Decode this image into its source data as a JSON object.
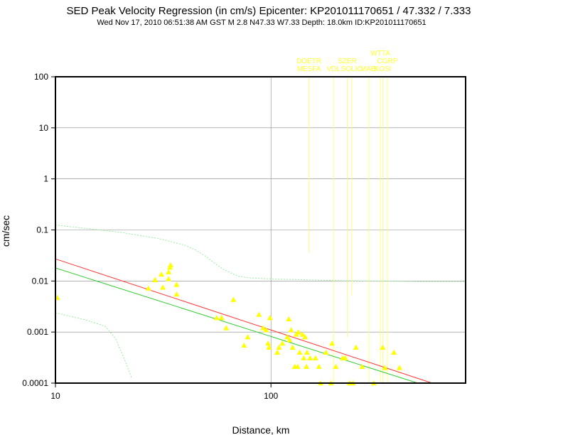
{
  "chart_data": {
    "type": "scatter",
    "title": "SED Peak Velocity Regression (in cm/s) Epicenter: KP201011170651 / 47.332 / 7.333",
    "subtitle": "Wed Nov 17, 2010 06:51:38 AM GST   M 2.8   N47.33 W7.33   Depth: 18.0km   ID:KP201011170651",
    "xlabel": "Distance, km",
    "ylabel": "cm/sec",
    "x_scale": "log",
    "y_scale": "log",
    "xlim": [
      10,
      800
    ],
    "ylim": [
      0.0001,
      100
    ],
    "x_ticks": [
      {
        "v": 10,
        "label": "10"
      },
      {
        "v": 100,
        "label": "100"
      }
    ],
    "y_ticks": [
      {
        "v": 100,
        "label": "100"
      },
      {
        "v": 10,
        "label": "10"
      },
      {
        "v": 1,
        "label": "1"
      },
      {
        "v": 0.1,
        "label": "0.1"
      },
      {
        "v": 0.01,
        "label": "0.01"
      },
      {
        "v": 0.001,
        "label": "0.001"
      },
      {
        "v": 0.0001,
        "label": "0.0001"
      }
    ],
    "grid": "major",
    "colors": {
      "points": "#ffff00",
      "regression": "#ff3333",
      "fit": "#33cc33",
      "bounds": "#99ee99",
      "station_lines": "#ffff66"
    },
    "points": [
      {
        "x": 10.2,
        "y": 0.0047
      },
      {
        "x": 27,
        "y": 0.0072
      },
      {
        "x": 29,
        "y": 0.0105
      },
      {
        "x": 31,
        "y": 0.0135
      },
      {
        "x": 31.5,
        "y": 0.0075
      },
      {
        "x": 33.5,
        "y": 0.011
      },
      {
        "x": 33.5,
        "y": 0.015
      },
      {
        "x": 34,
        "y": 0.0185
      },
      {
        "x": 34.2,
        "y": 0.0205
      },
      {
        "x": 36.5,
        "y": 0.0085
      },
      {
        "x": 36.5,
        "y": 0.0055
      },
      {
        "x": 56,
        "y": 0.0019
      },
      {
        "x": 59,
        "y": 0.0019
      },
      {
        "x": 62,
        "y": 0.0012
      },
      {
        "x": 67,
        "y": 0.0043
      },
      {
        "x": 75,
        "y": 0.00055
      },
      {
        "x": 78,
        "y": 0.0008
      },
      {
        "x": 88,
        "y": 0.0022
      },
      {
        "x": 92,
        "y": 0.0012
      },
      {
        "x": 95,
        "y": 0.0011
      },
      {
        "x": 97,
        "y": 0.0006
      },
      {
        "x": 98,
        "y": 0.0005
      },
      {
        "x": 99,
        "y": 0.0019
      },
      {
        "x": 107,
        "y": 0.0004
      },
      {
        "x": 109,
        "y": 0.0005
      },
      {
        "x": 113,
        "y": 0.0006
      },
      {
        "x": 119,
        "y": 0.0008
      },
      {
        "x": 121,
        "y": 0.0018
      },
      {
        "x": 122,
        "y": 0.0007
      },
      {
        "x": 124,
        "y": 0.0011
      },
      {
        "x": 126,
        "y": 0.0005
      },
      {
        "x": 129,
        "y": 0.00021
      },
      {
        "x": 131,
        "y": 0.0009
      },
      {
        "x": 133,
        "y": 0.00021
      },
      {
        "x": 134,
        "y": 0.001
      },
      {
        "x": 136,
        "y": 0.0004
      },
      {
        "x": 140,
        "y": 0.0009
      },
      {
        "x": 142,
        "y": 0.00031
      },
      {
        "x": 144,
        "y": 0.0008
      },
      {
        "x": 146,
        "y": 0.00021
      },
      {
        "x": 147,
        "y": 0.0004
      },
      {
        "x": 152,
        "y": 0.00031
      },
      {
        "x": 161,
        "y": 0.00031
      },
      {
        "x": 167,
        "y": 0.00021
      },
      {
        "x": 170,
        "y": 0.0001
      },
      {
        "x": 180,
        "y": 0.0004
      },
      {
        "x": 190,
        "y": 0.0001
      },
      {
        "x": 192,
        "y": 0.0006
      },
      {
        "x": 200,
        "y": 0.00021
      },
      {
        "x": 215,
        "y": 0.00031
      },
      {
        "x": 221,
        "y": 0.00031
      },
      {
        "x": 232,
        "y": 0.0001
      },
      {
        "x": 240,
        "y": 0.0001
      },
      {
        "x": 248,
        "y": 0.0005
      },
      {
        "x": 265,
        "y": 0.00021
      },
      {
        "x": 300,
        "y": 0.0001
      },
      {
        "x": 330,
        "y": 0.0005
      },
      {
        "x": 338,
        "y": 0.0002
      },
      {
        "x": 372,
        "y": 0.0004
      },
      {
        "x": 395,
        "y": 0.0002
      }
    ],
    "regression_line": {
      "x": [
        10,
        560
      ],
      "y": [
        0.027,
        0.0001
      ]
    },
    "fit_line": {
      "x": [
        10,
        480
      ],
      "y": [
        0.018,
        0.0001
      ]
    },
    "upper_bound": {
      "x": [
        10,
        20,
        30,
        40,
        45,
        50,
        55,
        60,
        70,
        80,
        100,
        150,
        200,
        300,
        400,
        500,
        600,
        800
      ],
      "y": [
        0.125,
        0.09,
        0.068,
        0.05,
        0.04,
        0.03,
        0.022,
        0.017,
        0.0125,
        0.0115,
        0.011,
        0.0105,
        0.0102,
        0.01,
        0.0099,
        0.0098,
        0.0098,
        0.0098
      ]
    },
    "lower_bound": {
      "x": [
        10,
        14,
        17,
        19,
        21,
        22.5
      ],
      "y": [
        0.0024,
        0.0017,
        0.0013,
        0.00075,
        0.00028,
        0.00013
      ]
    },
    "stations": [
      {
        "name": "DOETR",
        "x": 150,
        "y_end": 0.036,
        "label_row": 1
      },
      {
        "name": "MESFA",
        "x": 150,
        "y_end": 0.036,
        "label_row": 2
      },
      {
        "name": "VDL",
        "x": 195,
        "y_end": 0.0001,
        "label_row": 2
      },
      {
        "name": "SZER",
        "x": 226,
        "y_end": 0.0008,
        "label_row": 1
      },
      {
        "name": "SOLIC",
        "x": 237,
        "y_end": 0.0053,
        "label_row": 2
      },
      {
        "name": "MABI",
        "x": 285,
        "y_end": 0.0001,
        "label_row": 2
      },
      {
        "name": "WTTA",
        "x": 322,
        "y_end": 0.0001,
        "label_row": 0
      },
      {
        "name": "CGRP",
        "x": 347,
        "y_end": 0.0001,
        "label_row": 1
      },
      {
        "name": "KOSI",
        "x": 330,
        "y_end": 0.0001,
        "label_row": 2
      }
    ]
  }
}
